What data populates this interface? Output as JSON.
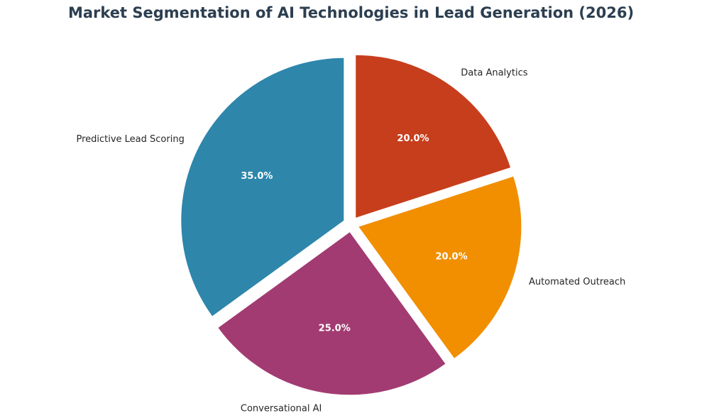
{
  "chart_data": {
    "type": "pie",
    "title": "Market Segmentation of AI Technologies in Lead Generation (2026)",
    "categories": [
      "Predictive Lead Scoring",
      "Conversational AI",
      "Automated Outreach",
      "Data Analytics"
    ],
    "values": [
      35,
      25,
      20,
      20
    ],
    "percent_labels": [
      "35.0%",
      "25.0%",
      "20.0%",
      "20.0%"
    ],
    "colors": [
      "#2e86ab",
      "#a23b72",
      "#f18f01",
      "#c73e1d"
    ],
    "start_angle_deg": 90,
    "direction": "counterclockwise",
    "exploded": true
  }
}
